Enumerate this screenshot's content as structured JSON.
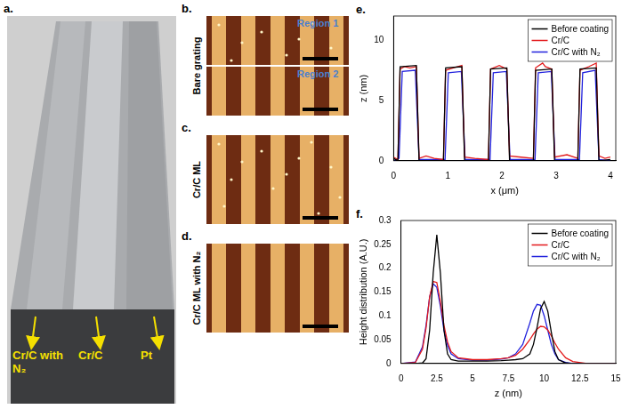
{
  "panels": {
    "a": {
      "label": "a.",
      "annotations": [
        "Cr/C with N₂",
        "Cr/C",
        "Pt"
      ]
    },
    "b": {
      "label": "b.",
      "title": "Bare grating",
      "regions": [
        "Region 1",
        "Region 2"
      ]
    },
    "c": {
      "label": "c.",
      "title": "Cr/C ML"
    },
    "d": {
      "label": "d.",
      "title": "Cr/C ML with N₂"
    }
  },
  "chart_data": [
    {
      "panel": "e.",
      "type": "line",
      "x_label": "x (μm)",
      "y_label": "z (nm)",
      "xlim": [
        0,
        4.1
      ],
      "xticks": [
        0,
        1,
        2,
        3,
        4
      ],
      "ylim": [
        0,
        12
      ],
      "yticks": [
        0,
        5,
        10
      ],
      "grid": false,
      "legend": "upper right",
      "series": [
        {
          "name": "Before coating",
          "color": "#000000",
          "x": [
            0,
            0.08,
            0.12,
            0.42,
            0.47,
            0.92,
            0.96,
            1.26,
            1.31,
            1.75,
            1.79,
            2.09,
            2.14,
            2.58,
            2.62,
            2.92,
            2.97,
            3.4,
            3.44,
            3.74,
            3.79,
            4.0
          ],
          "values": [
            0.2,
            0,
            7.8,
            7.9,
            0,
            0,
            7.7,
            7.8,
            0,
            0,
            7.6,
            7.7,
            0,
            0,
            7.5,
            7.6,
            0,
            0,
            7.6,
            7.7,
            0,
            0.1
          ]
        },
        {
          "name": "Cr/C",
          "color": "#e31a1c",
          "x": [
            0,
            0.08,
            0.12,
            0.2,
            0.3,
            0.42,
            0.47,
            0.6,
            0.75,
            0.92,
            0.96,
            1.1,
            1.26,
            1.31,
            1.5,
            1.75,
            1.79,
            1.95,
            2.09,
            2.14,
            2.35,
            2.58,
            2.62,
            2.75,
            2.8,
            2.92,
            2.97,
            3.2,
            3.4,
            3.44,
            3.6,
            3.74,
            3.79,
            3.9,
            4.0
          ],
          "values": [
            0.3,
            0.1,
            7.6,
            7.8,
            7.7,
            7.8,
            0.2,
            0.4,
            0.2,
            0.1,
            7.5,
            7.7,
            7.9,
            0.3,
            0.2,
            0.1,
            7.6,
            7.9,
            7.6,
            0.4,
            0.3,
            0.2,
            7.7,
            8.1,
            7.8,
            7.6,
            0.3,
            0.5,
            0.2,
            7.5,
            7.8,
            8.1,
            0.4,
            0.2,
            0.3
          ]
        },
        {
          "name": "Cr/C with N₂",
          "color": "#2222dd",
          "x": [
            0,
            0.1,
            0.16,
            0.4,
            0.47,
            0.95,
            1.01,
            1.25,
            1.32,
            1.78,
            1.84,
            2.08,
            2.15,
            2.61,
            2.67,
            2.91,
            2.98,
            3.43,
            3.49,
            3.72,
            3.79,
            4.0
          ],
          "values": [
            0,
            0.2,
            7.4,
            7.5,
            0.1,
            0.1,
            7.3,
            7.4,
            0.1,
            0.1,
            7.3,
            7.4,
            0.1,
            0.1,
            7.3,
            7.4,
            0.1,
            0.1,
            7.3,
            7.5,
            0.1,
            0
          ]
        }
      ]
    },
    {
      "panel": "f.",
      "type": "line",
      "x_label": "z (nm)",
      "y_label": "Height distribution (A.U.)",
      "xlim": [
        0,
        15
      ],
      "xticks": [
        0,
        2.5,
        5,
        7.5,
        10,
        12.5,
        15
      ],
      "ylim": [
        0,
        0.3
      ],
      "yticks": [
        0,
        0.05,
        0.1,
        0.15,
        0.2,
        0.25,
        0.3
      ],
      "grid": false,
      "legend": "upper right",
      "x": [
        0,
        1,
        1.5,
        1.75,
        2,
        2.25,
        2.5,
        2.75,
        3,
        3.25,
        3.5,
        4,
        5,
        6,
        7,
        7.5,
        8,
        8.5,
        9,
        9.25,
        9.5,
        9.75,
        10,
        10.25,
        10.5,
        10.75,
        11,
        11.5,
        12,
        13,
        15
      ],
      "series": [
        {
          "name": "Before coating",
          "color": "#000000",
          "values": [
            0,
            0,
            0.001,
            0.01,
            0.07,
            0.19,
            0.27,
            0.19,
            0.07,
            0.02,
            0.008,
            0.005,
            0.005,
            0.005,
            0.006,
            0.007,
            0.008,
            0.01,
            0.02,
            0.04,
            0.075,
            0.115,
            0.13,
            0.11,
            0.065,
            0.025,
            0.008,
            0.001,
            0,
            0,
            0
          ]
        },
        {
          "name": "Cr/C",
          "color": "#e31a1c",
          "values": [
            0,
            0.002,
            0.03,
            0.075,
            0.14,
            0.172,
            0.17,
            0.13,
            0.08,
            0.045,
            0.025,
            0.012,
            0.008,
            0.008,
            0.01,
            0.012,
            0.017,
            0.03,
            0.05,
            0.062,
            0.072,
            0.078,
            0.077,
            0.07,
            0.058,
            0.043,
            0.03,
            0.012,
            0.004,
            0,
            0
          ]
        },
        {
          "name": "Cr/C with N₂",
          "color": "#2222dd",
          "values": [
            0,
            0.003,
            0.035,
            0.08,
            0.14,
            0.167,
            0.16,
            0.12,
            0.07,
            0.038,
            0.02,
            0.01,
            0.007,
            0.007,
            0.009,
            0.012,
            0.02,
            0.04,
            0.085,
            0.11,
            0.124,
            0.122,
            0.1,
            0.07,
            0.04,
            0.02,
            0.008,
            0.002,
            0,
            0,
            0
          ]
        }
      ]
    }
  ]
}
